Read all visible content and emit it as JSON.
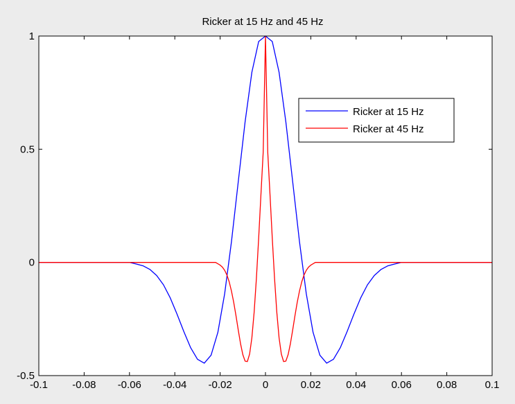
{
  "chart_data": {
    "type": "line",
    "title": "Ricker at 15 Hz and 45 Hz",
    "xlabel": "",
    "ylabel": "",
    "xlim": [
      -0.1,
      0.1
    ],
    "ylim": [
      -0.5,
      1
    ],
    "x_ticks": [
      -0.1,
      -0.08,
      -0.06,
      -0.04,
      -0.02,
      0,
      0.02,
      0.04,
      0.06,
      0.08,
      0.1
    ],
    "x_tick_labels": [
      "-0.1",
      "-0.08",
      "-0.06",
      "-0.04",
      "-0.02",
      "0",
      "0.02",
      "0.04",
      "0.06",
      "0.08",
      "0.1"
    ],
    "y_ticks": [
      -0.5,
      0,
      0.5,
      1
    ],
    "y_tick_labels": [
      "-0.5",
      "0",
      "0.5",
      "1"
    ],
    "grid": false,
    "legend_position": "top-right",
    "series": [
      {
        "name": "Ricker at 15 Hz",
        "color": "#0000ff",
        "x": [
          -0.1,
          -0.06,
          -0.057,
          -0.054,
          -0.051,
          -0.048,
          -0.045,
          -0.042,
          -0.039,
          -0.036,
          -0.033,
          -0.03,
          -0.027,
          -0.024,
          -0.021,
          -0.018,
          -0.015,
          -0.012,
          -0.009,
          -0.006,
          -0.003,
          0,
          0.003,
          0.006,
          0.009,
          0.012,
          0.015,
          0.018,
          0.021,
          0.024,
          0.027,
          0.03,
          0.033,
          0.036,
          0.039,
          0.042,
          0.045,
          0.048,
          0.051,
          0.054,
          0.057,
          0.06,
          0.1
        ],
        "y": [
          0,
          0,
          -0.007,
          -0.015,
          -0.031,
          -0.058,
          -0.099,
          -0.157,
          -0.229,
          -0.306,
          -0.377,
          -0.428,
          -0.445,
          -0.41,
          -0.309,
          -0.138,
          0.092,
          0.357,
          0.62,
          0.84,
          0.976,
          1.0,
          0.976,
          0.84,
          0.62,
          0.357,
          0.092,
          -0.138,
          -0.309,
          -0.41,
          -0.445,
          -0.428,
          -0.377,
          -0.306,
          -0.229,
          -0.157,
          -0.099,
          -0.058,
          -0.031,
          -0.015,
          -0.007,
          0,
          0
        ]
      },
      {
        "name": "Ricker at 45 Hz",
        "color": "#ff0000",
        "x": [
          -0.1,
          -0.022,
          -0.02,
          -0.019,
          -0.018,
          -0.017,
          -0.016,
          -0.015,
          -0.014,
          -0.013,
          -0.012,
          -0.011,
          -0.01,
          -0.009,
          -0.008,
          -0.007,
          -0.006,
          -0.005,
          -0.004,
          -0.003,
          -0.002,
          -0.001,
          0,
          0.001,
          0.002,
          0.003,
          0.004,
          0.005,
          0.006,
          0.007,
          0.008,
          0.009,
          0.01,
          0.011,
          0.012,
          0.013,
          0.014,
          0.015,
          0.016,
          0.017,
          0.018,
          0.019,
          0.02,
          0.022,
          0.1
        ],
        "y": [
          0,
          0,
          -0.012,
          -0.021,
          -0.035,
          -0.056,
          -0.086,
          -0.127,
          -0.177,
          -0.236,
          -0.299,
          -0.359,
          -0.407,
          -0.436,
          -0.438,
          -0.405,
          -0.333,
          -0.22,
          -0.07,
          0.107,
          0.3,
          0.488,
          1.0,
          0.488,
          0.3,
          0.107,
          -0.07,
          -0.22,
          -0.333,
          -0.405,
          -0.438,
          -0.436,
          -0.407,
          -0.359,
          -0.299,
          -0.236,
          -0.177,
          -0.127,
          -0.086,
          -0.056,
          -0.035,
          -0.021,
          -0.012,
          0,
          0
        ]
      }
    ]
  }
}
